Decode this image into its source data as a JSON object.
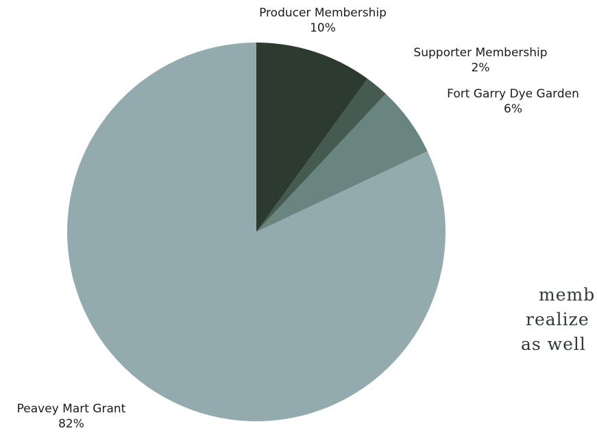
{
  "chart_data": {
    "type": "pie",
    "start_angle_deg": 0,
    "direction": "clockwise",
    "slices": [
      {
        "label": "Producer Membership",
        "value": 10,
        "pct_label": "10%",
        "color": "#2c3a2f"
      },
      {
        "label": "Supporter Membership",
        "value": 2,
        "pct_label": "2%",
        "color": "#455b51"
      },
      {
        "label": "Fort Garry Dye Garden",
        "value": 6,
        "pct_label": "6%",
        "color": "#6a8580"
      },
      {
        "label": "Peavey Mart Grant",
        "value": 82,
        "pct_label": "82%",
        "color": "#93aaae"
      }
    ]
  },
  "background_text": {
    "line1": "memb",
    "line2": "realize",
    "line3": "as well"
  }
}
